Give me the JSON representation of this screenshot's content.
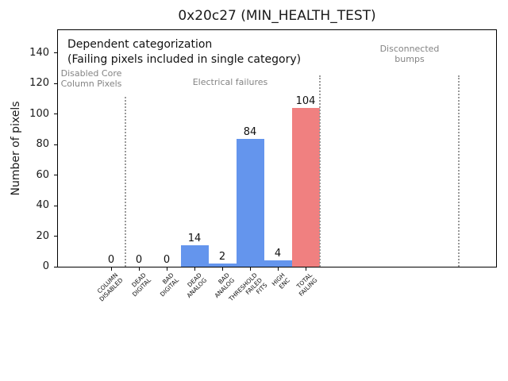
{
  "chart_data": {
    "type": "bar",
    "title": "0x20c27 (MIN_HEALTH_TEST)",
    "ylabel": "Number of pixels",
    "xlabel": "",
    "categories": [
      "COLUMN\nDISABLED",
      "DEAD\nDIGITAL",
      "BAD\nDIGITAL",
      "DEAD\nANALOG",
      "BAD\nANALOG",
      "THRESHOLD\nFAILED\nFITS",
      "HIGH\nENC",
      "TOTAL\nFAILING"
    ],
    "values": [
      0,
      0,
      0,
      14,
      2,
      84,
      4,
      104
    ],
    "bar_labels": [
      "0",
      "0",
      "0",
      "14",
      "2",
      "84",
      "4",
      "104"
    ],
    "bar_colors": [
      "#6495ed",
      "#6495ed",
      "#6495ed",
      "#6495ed",
      "#6495ed",
      "#6495ed",
      "#6495ed",
      "#f08080"
    ],
    "ylim": [
      0,
      155
    ],
    "yticks": [
      0,
      20,
      40,
      60,
      80,
      100,
      120,
      140
    ],
    "grid": false,
    "legend": "none",
    "annotation": [
      "Dependent categorization",
      "(Failing pixels included in single category)"
    ],
    "regions": [
      {
        "label": "Disabled Core\nColumn Pixels"
      },
      {
        "label": "Electrical failures"
      },
      {
        "label": "Disconnected\nbumps"
      }
    ],
    "separator_boundaries": [
      0.5,
      7.5,
      12.5
    ],
    "colors": {
      "bar_blue": "#6495ed",
      "bar_red": "#f08080",
      "separator": "#9a9a9a",
      "region_label": "#848484",
      "axis": "#000000"
    }
  }
}
